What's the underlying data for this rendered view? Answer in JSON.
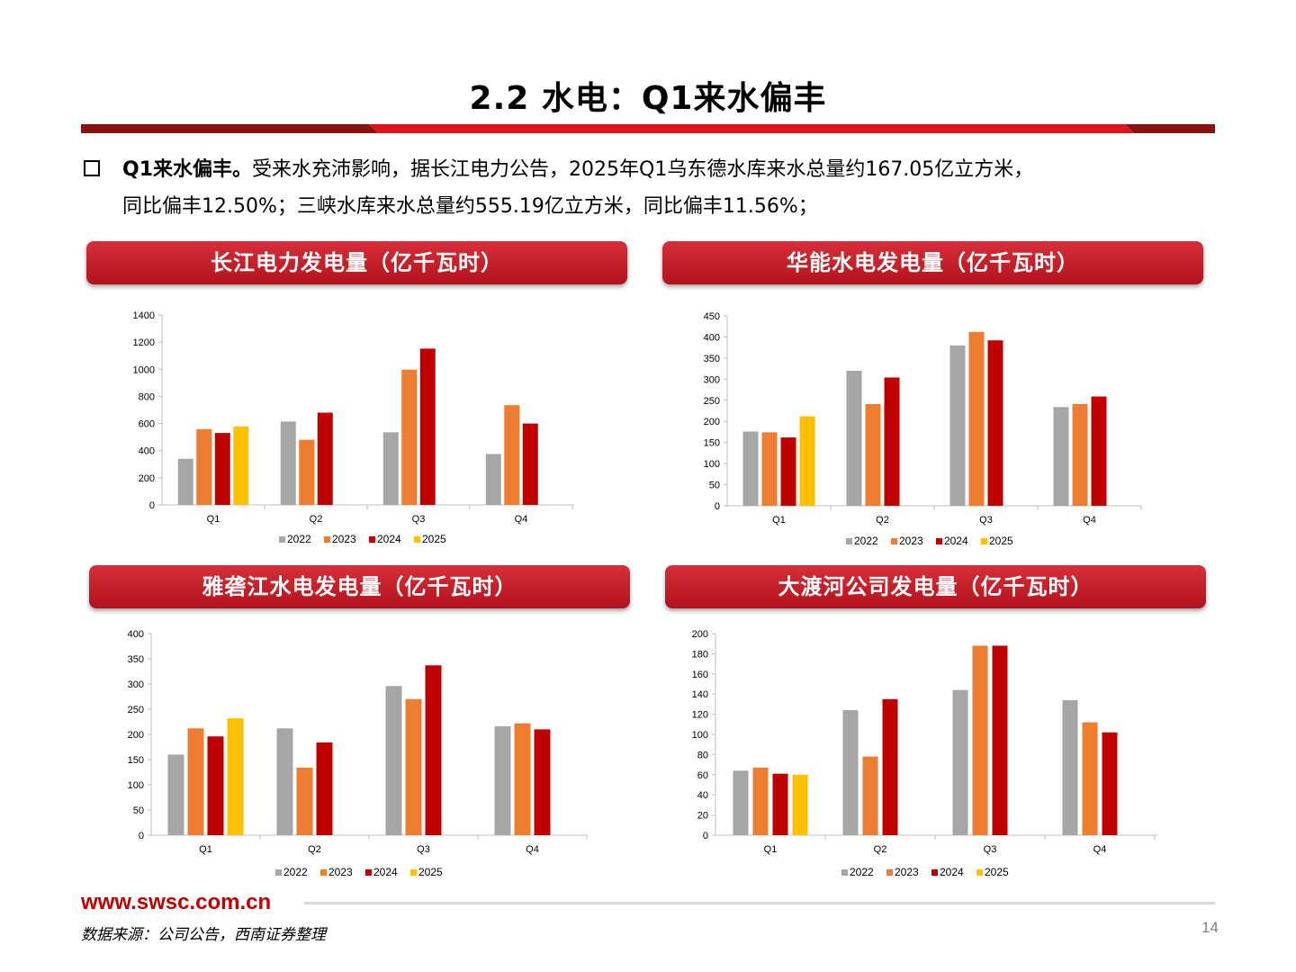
{
  "page": {
    "title": "2.2 水电：Q1来水偏丰",
    "bullet_bold": "Q1来水偏丰。",
    "bullet_rest": "受来水充沛影响，据长江电力公告，2025年Q1乌东德水库来水总量约167.05亿立方米，",
    "bullet_line2": "同比偏丰12.50%；三峡水库来水总量约555.19亿立方米，同比偏丰11.56%；",
    "footer_url": "www.swsc.com.cn",
    "source": "数据来源：公司公告，西南证券整理",
    "page_number": "14",
    "colors": {
      "accent": "#c00000",
      "2022": "#a6a6a6",
      "2023": "#ed7d31",
      "2024": "#c00000",
      "2025": "#ffc000"
    }
  },
  "chart_data": [
    {
      "type": "bar",
      "title": "长江电力发电量（亿千瓦时）",
      "categories": [
        "Q1",
        "Q2",
        "Q3",
        "Q4"
      ],
      "ylim": [
        0,
        1400
      ],
      "yticks": [
        0,
        200,
        400,
        600,
        800,
        1000,
        1200,
        1400
      ],
      "legend_position": "bottom",
      "series": [
        {
          "name": "2022",
          "color": "#a6a6a6",
          "values": [
            340,
            615,
            535,
            375
          ]
        },
        {
          "name": "2023",
          "color": "#ed7d31",
          "values": [
            558,
            480,
            997,
            735
          ]
        },
        {
          "name": "2024",
          "color": "#c00000",
          "values": [
            530,
            680,
            1152,
            600
          ]
        },
        {
          "name": "2025",
          "color": "#ffc000",
          "values": [
            578,
            null,
            null,
            null
          ]
        }
      ]
    },
    {
      "type": "bar",
      "title": "华能水电发电量（亿千瓦时）",
      "categories": [
        "Q1",
        "Q2",
        "Q3",
        "Q4"
      ],
      "ylim": [
        0,
        450
      ],
      "yticks": [
        0,
        50,
        100,
        150,
        200,
        250,
        300,
        350,
        400,
        450
      ],
      "legend_position": "bottom",
      "series": [
        {
          "name": "2022",
          "color": "#a6a6a6",
          "values": [
            176,
            320,
            380,
            234
          ]
        },
        {
          "name": "2023",
          "color": "#ed7d31",
          "values": [
            174,
            241,
            412,
            241
          ]
        },
        {
          "name": "2024",
          "color": "#c00000",
          "values": [
            162,
            304,
            392,
            259
          ]
        },
        {
          "name": "2025",
          "color": "#ffc000",
          "values": [
            212,
            null,
            null,
            null
          ]
        }
      ]
    },
    {
      "type": "bar",
      "title": "雅砻江水电发电量（亿千瓦时）",
      "categories": [
        "Q1",
        "Q2",
        "Q3",
        "Q4"
      ],
      "ylim": [
        0,
        400
      ],
      "yticks": [
        0,
        50,
        100,
        150,
        200,
        250,
        300,
        350,
        400
      ],
      "legend_position": "bottom",
      "series": [
        {
          "name": "2022",
          "color": "#a6a6a6",
          "values": [
            160,
            212,
            296,
            216
          ]
        },
        {
          "name": "2023",
          "color": "#ed7d31",
          "values": [
            212,
            134,
            270,
            222
          ]
        },
        {
          "name": "2024",
          "color": "#c00000",
          "values": [
            196,
            184,
            337,
            210
          ]
        },
        {
          "name": "2025",
          "color": "#ffc000",
          "values": [
            232,
            null,
            null,
            null
          ]
        }
      ]
    },
    {
      "type": "bar",
      "title": "大渡河公司发电量（亿千瓦时）",
      "categories": [
        "Q1",
        "Q2",
        "Q3",
        "Q4"
      ],
      "ylim": [
        0,
        200
      ],
      "yticks": [
        0,
        20,
        40,
        60,
        80,
        100,
        120,
        140,
        160,
        180,
        200
      ],
      "legend_position": "bottom",
      "series": [
        {
          "name": "2022",
          "color": "#a6a6a6",
          "values": [
            64,
            124,
            144,
            134
          ]
        },
        {
          "name": "2023",
          "color": "#ed7d31",
          "values": [
            67,
            78,
            188,
            112
          ]
        },
        {
          "name": "2024",
          "color": "#c00000",
          "values": [
            61,
            135,
            188,
            102
          ]
        },
        {
          "name": "2025",
          "color": "#ffc000",
          "values": [
            60,
            null,
            null,
            null
          ]
        }
      ]
    }
  ]
}
